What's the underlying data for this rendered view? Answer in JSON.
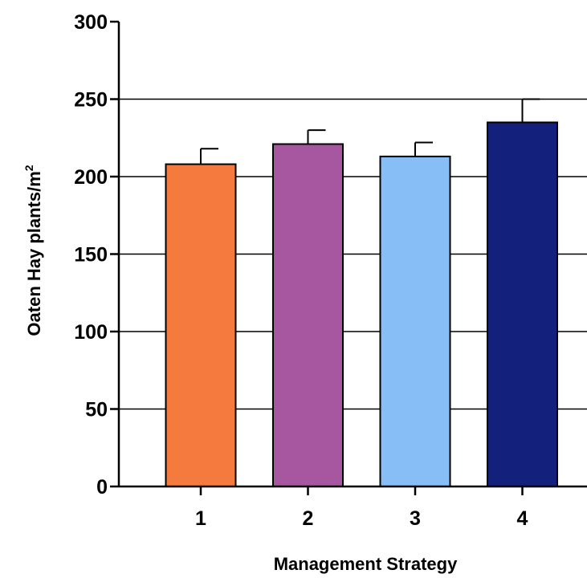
{
  "chart_data": {
    "type": "bar",
    "categories": [
      "1",
      "2",
      "3",
      "4"
    ],
    "values": [
      208,
      221,
      213,
      235
    ],
    "error_upper": [
      218,
      230,
      222,
      250
    ],
    "bar_colors": [
      "#F47B3D",
      "#A6579F",
      "#86BEF5",
      "#13217C"
    ],
    "xlabel": "Management  Strategy",
    "ylabel_main": "Oaten  Hay plants/m",
    "ylabel_superscript": "2",
    "ylim": [
      0,
      300
    ],
    "yticks": [
      0,
      50,
      100,
      150,
      200,
      250,
      300
    ],
    "grid": "horizontal",
    "legend": "none"
  }
}
